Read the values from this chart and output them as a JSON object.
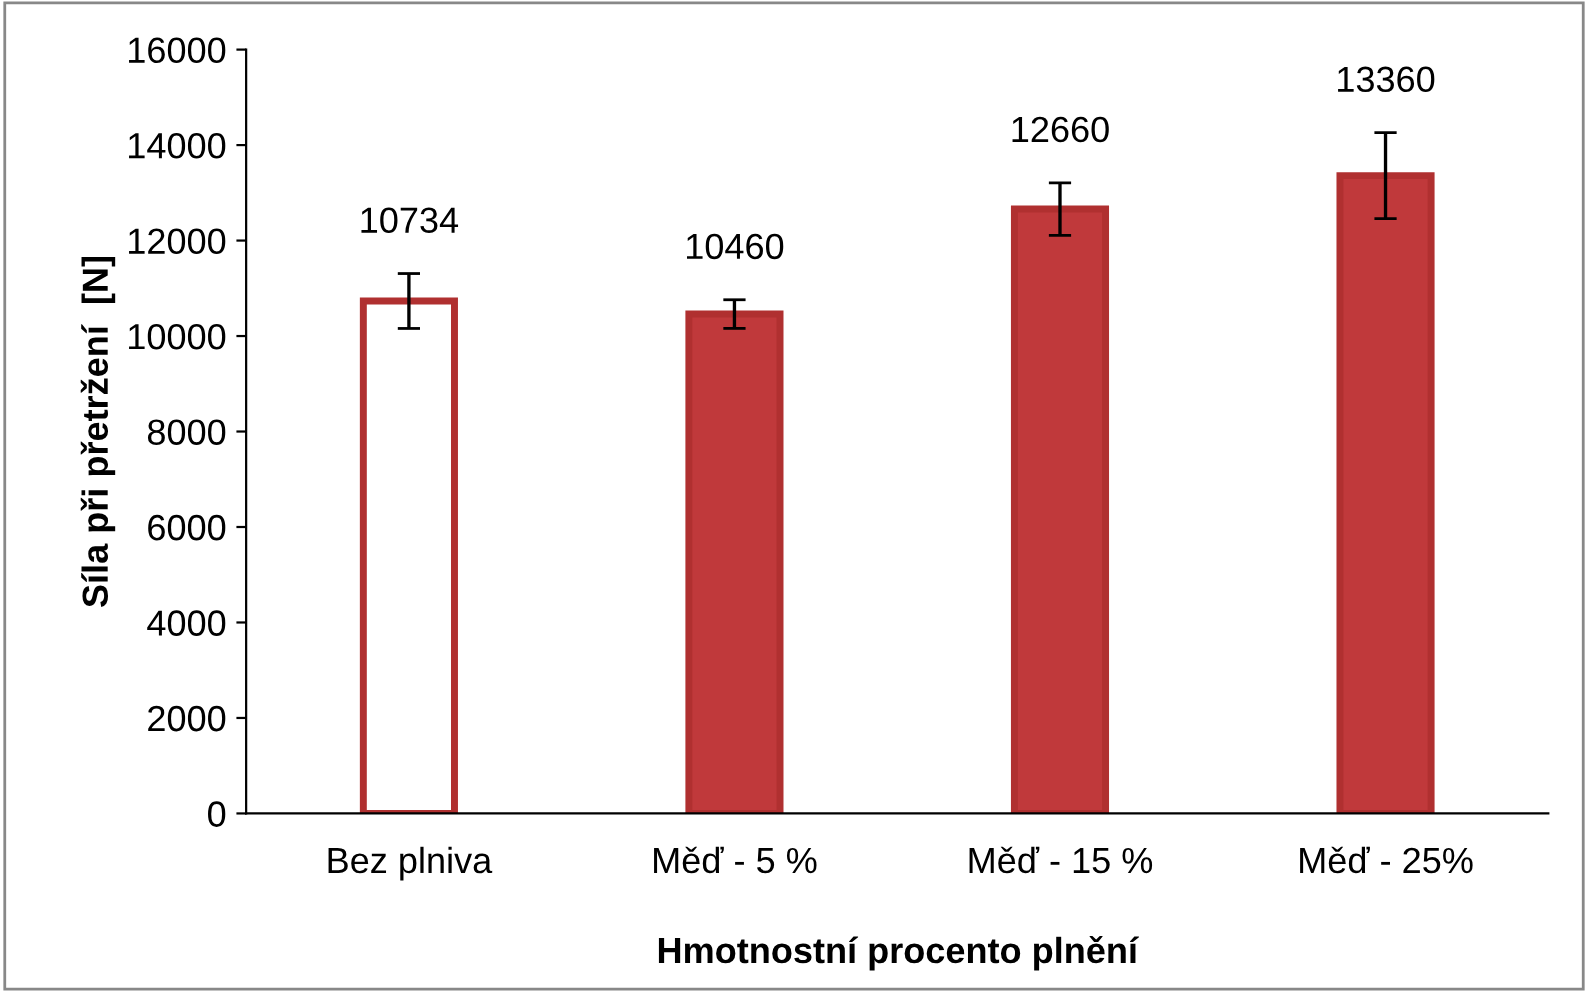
{
  "chart_data": {
    "type": "bar",
    "xlabel": "Hmotnostní procento plnění",
    "ylabel": "Síla při přetržení  [N]",
    "categories": [
      "Bez plniva",
      "Měď - 5 %",
      "Měď - 15 %",
      "Měď - 25%"
    ],
    "values": [
      10734,
      10460,
      12660,
      13360
    ],
    "colors": [
      "#ffffff",
      "#c0393b",
      "#c0393b",
      "#c0393b"
    ],
    "errors": [
      575,
      300,
      550,
      900
    ],
    "ylim": [
      0,
      16000
    ],
    "yticks": [
      0,
      2000,
      4000,
      6000,
      8000,
      10000,
      12000,
      14000,
      16000
    ],
    "data_labels": true,
    "grid": false,
    "legend": false
  }
}
